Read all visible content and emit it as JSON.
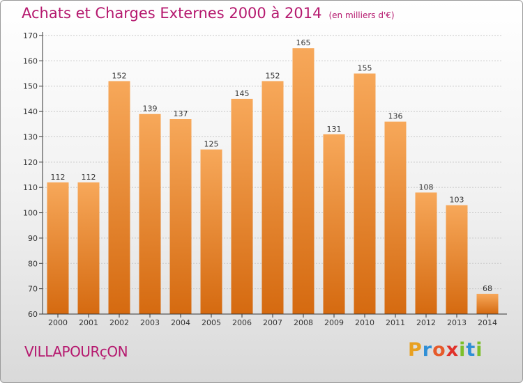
{
  "header": {
    "title": "Achats et Charges Externes 2000 à 2014",
    "unit": "(en milliers d'€)"
  },
  "footer": {
    "commune": "VILLAPOURçON",
    "logo_letters": [
      "P",
      "r",
      "o",
      "x",
      "i",
      "t",
      "i"
    ],
    "logo_colors": [
      "#e8a020",
      "#2f8fd6",
      "#e65a2a",
      "#e0312a",
      "#7cbf2a",
      "#2f8fd6",
      "#7cbf2a"
    ]
  },
  "colors": {
    "title": "#b5186e",
    "bar_top": "#f7a85a",
    "bar_bottom": "#d56a10"
  },
  "chart_data": {
    "type": "bar",
    "categories": [
      "2000",
      "2001",
      "2002",
      "2003",
      "2004",
      "2005",
      "2006",
      "2007",
      "2008",
      "2009",
      "2010",
      "2011",
      "2012",
      "2013",
      "2014"
    ],
    "values": [
      112,
      112,
      152,
      139,
      137,
      125,
      145,
      152,
      165,
      131,
      155,
      136,
      108,
      103,
      68
    ],
    "ylim": [
      60,
      170
    ],
    "yticks": [
      60,
      70,
      80,
      90,
      100,
      110,
      120,
      130,
      140,
      150,
      160,
      170
    ],
    "grid": true,
    "data_labels": true
  }
}
